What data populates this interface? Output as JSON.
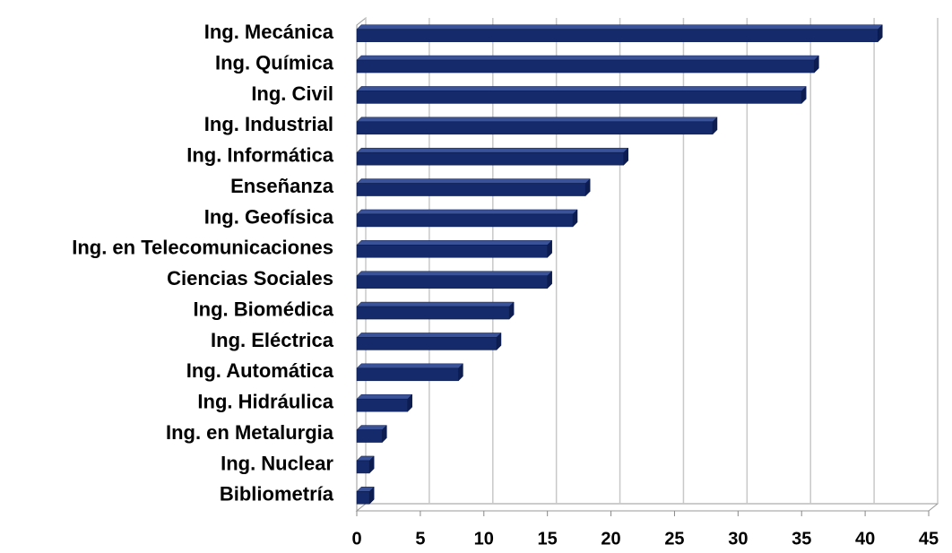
{
  "chart_data": {
    "type": "bar",
    "orientation": "horizontal",
    "categories": [
      "Ing. Mecánica",
      "Ing. Química",
      "Ing. Civil",
      "Ing. Industrial",
      "Ing. Informática",
      "Enseñanza",
      "Ing. Geofísica",
      "Ing. en Telecomunicaciones",
      "Ciencias Sociales",
      "Ing. Biomédica",
      "Ing. Eléctrica",
      "Ing. Automática",
      "Ing. Hidráulica",
      "Ing. en Metalurgia",
      "Ing. Nuclear",
      "Bibliometría"
    ],
    "values": [
      41,
      36,
      35,
      28,
      21,
      18,
      17,
      15,
      15,
      12,
      11,
      8,
      4,
      2,
      1,
      1
    ],
    "color": "#142a6b",
    "xlim": [
      0,
      45
    ],
    "xticks": [
      0,
      5,
      10,
      15,
      20,
      25,
      30,
      35,
      40,
      45
    ],
    "grid": true
  }
}
